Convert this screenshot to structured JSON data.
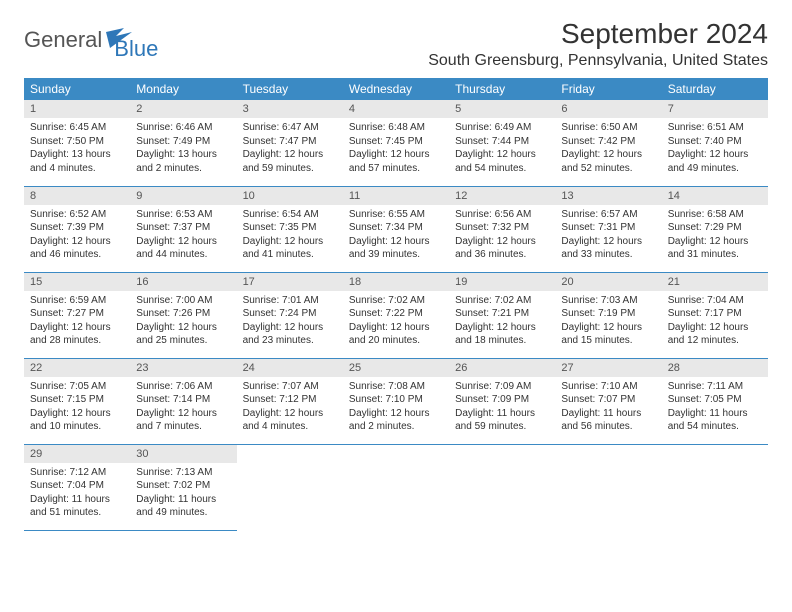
{
  "logo": {
    "text1": "General",
    "text2": "Blue"
  },
  "title": "September 2024",
  "location": "South Greensburg, Pennsylvania, United States",
  "colors": {
    "header_bg": "#3b8ac4",
    "header_text": "#ffffff",
    "daynum_bg": "#e8e8e8",
    "border": "#3b8ac4",
    "logo_gray": "#555555",
    "logo_blue": "#2e77b8"
  },
  "weekdays": [
    "Sunday",
    "Monday",
    "Tuesday",
    "Wednesday",
    "Thursday",
    "Friday",
    "Saturday"
  ],
  "weeks": [
    [
      {
        "n": "1",
        "sr": "Sunrise: 6:45 AM",
        "ss": "Sunset: 7:50 PM",
        "d1": "Daylight: 13 hours",
        "d2": "and 4 minutes."
      },
      {
        "n": "2",
        "sr": "Sunrise: 6:46 AM",
        "ss": "Sunset: 7:49 PM",
        "d1": "Daylight: 13 hours",
        "d2": "and 2 minutes."
      },
      {
        "n": "3",
        "sr": "Sunrise: 6:47 AM",
        "ss": "Sunset: 7:47 PM",
        "d1": "Daylight: 12 hours",
        "d2": "and 59 minutes."
      },
      {
        "n": "4",
        "sr": "Sunrise: 6:48 AM",
        "ss": "Sunset: 7:45 PM",
        "d1": "Daylight: 12 hours",
        "d2": "and 57 minutes."
      },
      {
        "n": "5",
        "sr": "Sunrise: 6:49 AM",
        "ss": "Sunset: 7:44 PM",
        "d1": "Daylight: 12 hours",
        "d2": "and 54 minutes."
      },
      {
        "n": "6",
        "sr": "Sunrise: 6:50 AM",
        "ss": "Sunset: 7:42 PM",
        "d1": "Daylight: 12 hours",
        "d2": "and 52 minutes."
      },
      {
        "n": "7",
        "sr": "Sunrise: 6:51 AM",
        "ss": "Sunset: 7:40 PM",
        "d1": "Daylight: 12 hours",
        "d2": "and 49 minutes."
      }
    ],
    [
      {
        "n": "8",
        "sr": "Sunrise: 6:52 AM",
        "ss": "Sunset: 7:39 PM",
        "d1": "Daylight: 12 hours",
        "d2": "and 46 minutes."
      },
      {
        "n": "9",
        "sr": "Sunrise: 6:53 AM",
        "ss": "Sunset: 7:37 PM",
        "d1": "Daylight: 12 hours",
        "d2": "and 44 minutes."
      },
      {
        "n": "10",
        "sr": "Sunrise: 6:54 AM",
        "ss": "Sunset: 7:35 PM",
        "d1": "Daylight: 12 hours",
        "d2": "and 41 minutes."
      },
      {
        "n": "11",
        "sr": "Sunrise: 6:55 AM",
        "ss": "Sunset: 7:34 PM",
        "d1": "Daylight: 12 hours",
        "d2": "and 39 minutes."
      },
      {
        "n": "12",
        "sr": "Sunrise: 6:56 AM",
        "ss": "Sunset: 7:32 PM",
        "d1": "Daylight: 12 hours",
        "d2": "and 36 minutes."
      },
      {
        "n": "13",
        "sr": "Sunrise: 6:57 AM",
        "ss": "Sunset: 7:31 PM",
        "d1": "Daylight: 12 hours",
        "d2": "and 33 minutes."
      },
      {
        "n": "14",
        "sr": "Sunrise: 6:58 AM",
        "ss": "Sunset: 7:29 PM",
        "d1": "Daylight: 12 hours",
        "d2": "and 31 minutes."
      }
    ],
    [
      {
        "n": "15",
        "sr": "Sunrise: 6:59 AM",
        "ss": "Sunset: 7:27 PM",
        "d1": "Daylight: 12 hours",
        "d2": "and 28 minutes."
      },
      {
        "n": "16",
        "sr": "Sunrise: 7:00 AM",
        "ss": "Sunset: 7:26 PM",
        "d1": "Daylight: 12 hours",
        "d2": "and 25 minutes."
      },
      {
        "n": "17",
        "sr": "Sunrise: 7:01 AM",
        "ss": "Sunset: 7:24 PM",
        "d1": "Daylight: 12 hours",
        "d2": "and 23 minutes."
      },
      {
        "n": "18",
        "sr": "Sunrise: 7:02 AM",
        "ss": "Sunset: 7:22 PM",
        "d1": "Daylight: 12 hours",
        "d2": "and 20 minutes."
      },
      {
        "n": "19",
        "sr": "Sunrise: 7:02 AM",
        "ss": "Sunset: 7:21 PM",
        "d1": "Daylight: 12 hours",
        "d2": "and 18 minutes."
      },
      {
        "n": "20",
        "sr": "Sunrise: 7:03 AM",
        "ss": "Sunset: 7:19 PM",
        "d1": "Daylight: 12 hours",
        "d2": "and 15 minutes."
      },
      {
        "n": "21",
        "sr": "Sunrise: 7:04 AM",
        "ss": "Sunset: 7:17 PM",
        "d1": "Daylight: 12 hours",
        "d2": "and 12 minutes."
      }
    ],
    [
      {
        "n": "22",
        "sr": "Sunrise: 7:05 AM",
        "ss": "Sunset: 7:15 PM",
        "d1": "Daylight: 12 hours",
        "d2": "and 10 minutes."
      },
      {
        "n": "23",
        "sr": "Sunrise: 7:06 AM",
        "ss": "Sunset: 7:14 PM",
        "d1": "Daylight: 12 hours",
        "d2": "and 7 minutes."
      },
      {
        "n": "24",
        "sr": "Sunrise: 7:07 AM",
        "ss": "Sunset: 7:12 PM",
        "d1": "Daylight: 12 hours",
        "d2": "and 4 minutes."
      },
      {
        "n": "25",
        "sr": "Sunrise: 7:08 AM",
        "ss": "Sunset: 7:10 PM",
        "d1": "Daylight: 12 hours",
        "d2": "and 2 minutes."
      },
      {
        "n": "26",
        "sr": "Sunrise: 7:09 AM",
        "ss": "Sunset: 7:09 PM",
        "d1": "Daylight: 11 hours",
        "d2": "and 59 minutes."
      },
      {
        "n": "27",
        "sr": "Sunrise: 7:10 AM",
        "ss": "Sunset: 7:07 PM",
        "d1": "Daylight: 11 hours",
        "d2": "and 56 minutes."
      },
      {
        "n": "28",
        "sr": "Sunrise: 7:11 AM",
        "ss": "Sunset: 7:05 PM",
        "d1": "Daylight: 11 hours",
        "d2": "and 54 minutes."
      }
    ],
    [
      {
        "n": "29",
        "sr": "Sunrise: 7:12 AM",
        "ss": "Sunset: 7:04 PM",
        "d1": "Daylight: 11 hours",
        "d2": "and 51 minutes."
      },
      {
        "n": "30",
        "sr": "Sunrise: 7:13 AM",
        "ss": "Sunset: 7:02 PM",
        "d1": "Daylight: 11 hours",
        "d2": "and 49 minutes."
      },
      null,
      null,
      null,
      null,
      null
    ]
  ]
}
